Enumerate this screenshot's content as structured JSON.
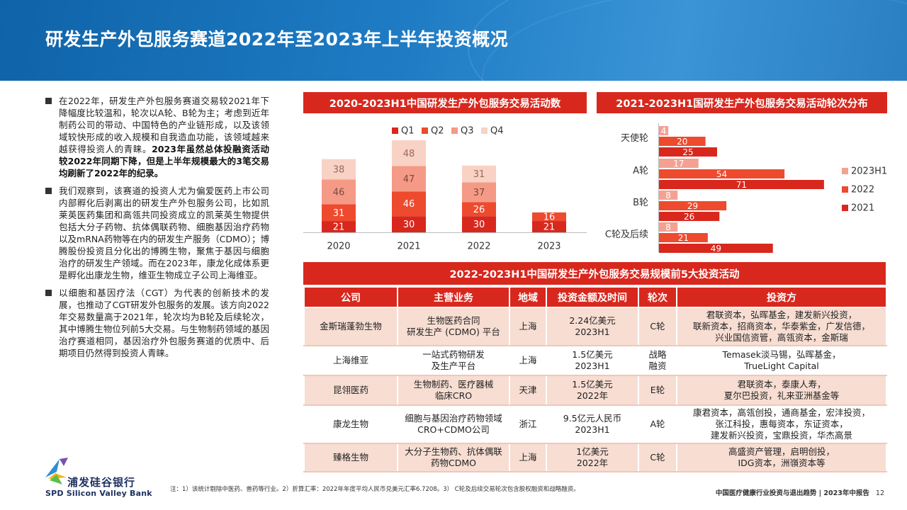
{
  "title": "研发生产外包服务赛道2022年至2023年上半年投资概况",
  "paragraphs": [
    {
      "normal": "在2022年，研发生产外包服务赛道交易较2021年下降幅度比较温和，轮次以A轮、B轮为主；考虑到近年制药公司的带动、中国特色的产业链形成，以及该领域较快形成的收入规模和自我造血功能，该领域越来越获得投资人的青睐。",
      "bold": "2023年虽然总体投融资活动较2022年同期下降，但是上半年规模最大的3笔交易均刷新了2022年的纪录。"
    },
    {
      "normal": "我们观察到，该赛道的投资人尤为偏爱医药上市公司内部孵化后剥离出的研发生产外包服务公司，比如凯莱英医药集团和高瓴共同投资成立的凯莱英生物提供包括大分子药物、抗体偶联药物、细胞基因治疗药物以及mRNA药物等在内的研发生产服务（CDMO）；博腾股份投资且分化出的博腾生物，聚焦于基因与细胞治疗的研发生产领域。而在2023年，康龙化成体系更是孵化出康龙生物，维亚生物成立子公司上海维亚。",
      "bold": ""
    },
    {
      "normal": "以细胞和基因疗法（CGT）为代表的创新技术的发展，也推动了CGT研发外包服务的发展。该方向2022年交易数量高于2021年，轮次均为B轮及后续轮次，其中博腾生物位列前5大交易。与生物制药领域的基因治疗赛道相同，基因治疗外包服务赛道的优质中、后期项目仍然得到投资人青睐。",
      "bold": ""
    }
  ],
  "chart1_title": "2020-2023H1中国研发生产外包服务交易活动数",
  "chart2_title": "2021-2023H1国研发生产外包服务交易活动轮次分布",
  "table_title": "2022-2023H1中国研发生产外包服务交易规模前5大投资活动",
  "colors": {
    "q1": "#d8281e",
    "q2": "#ee4a2e",
    "q3": "#f59a86",
    "q4": "#f8d2c4",
    "y2023h1": "#f4a193",
    "y2022": "#ee4a2e",
    "y2021": "#d8281e",
    "accent": "#d8281e"
  },
  "chart_data": [
    {
      "type": "bar",
      "stacked": true,
      "categories": [
        "2020",
        "2021",
        "2022",
        "2023"
      ],
      "series": [
        {
          "name": "Q1",
          "values": [
            21,
            30,
            30,
            21
          ],
          "color": "#d8281e"
        },
        {
          "name": "Q2",
          "values": [
            31,
            46,
            26,
            16
          ],
          "color": "#ee4a2e"
        },
        {
          "name": "Q3",
          "values": [
            46,
            47,
            37,
            null
          ],
          "color": "#f59a86"
        },
        {
          "name": "Q4",
          "values": [
            38,
            48,
            31,
            null
          ],
          "color": "#f8d2c4"
        }
      ],
      "legend_position": "top",
      "grid": false
    },
    {
      "type": "bar",
      "orientation": "horizontal",
      "categories": [
        "天使轮",
        "A轮",
        "B轮",
        "C轮及后续"
      ],
      "series": [
        {
          "name": "2023H1",
          "values": [
            4,
            17,
            8,
            8
          ],
          "color": "#f4a193"
        },
        {
          "name": "2022",
          "values": [
            20,
            54,
            29,
            21
          ],
          "color": "#ee4a2e"
        },
        {
          "name": "2021",
          "values": [
            25,
            71,
            26,
            49
          ],
          "color": "#d8281e"
        }
      ],
      "legend_position": "right",
      "grid": false
    }
  ],
  "table": {
    "headers": [
      "公司",
      "主营业务",
      "地域",
      "投资金额及时间",
      "轮次",
      "投资方"
    ],
    "rows": [
      {
        "company": "金斯瑞蓬勃生物",
        "business": [
          "生物医药合同",
          "研发生产 (CDMO) 平台"
        ],
        "region": "上海",
        "amount": [
          "2.24亿美元",
          "2023H1"
        ],
        "round": [
          "C轮"
        ],
        "investors": [
          "君联资本，弘晖基金，建发新兴投资，",
          "联新资本，招商资本，华泰紫金，广发信德，",
          "兴业国信资管，高瓴资本，金斯瑞"
        ]
      },
      {
        "company": "上海维亚",
        "business": [
          "一站式药物研发",
          "及生产平台"
        ],
        "region": "上海",
        "amount": [
          "1.5亿美元",
          "2023H1"
        ],
        "round": [
          "战略",
          "融资"
        ],
        "investors": [
          "Temasek淡马锡，弘晖基金，",
          "TrueLight Capital"
        ]
      },
      {
        "company": "昆翎医药",
        "business": [
          "生物制药、医疗器械",
          "临床CRO"
        ],
        "region": "天津",
        "amount": [
          "1.5亿美元",
          "2022年"
        ],
        "round": [
          "E轮"
        ],
        "investors": [
          "君联资本，泰康人寿，",
          "夏尔巴投资，礼来亚洲基金等"
        ]
      },
      {
        "company": "康龙生物",
        "business": [
          "细胞与基因治疗药物领域",
          "CRO+CDMO公司"
        ],
        "region": "浙江",
        "amount": [
          "9.5亿元人民币",
          "2023H1"
        ],
        "round": [
          "A轮"
        ],
        "investors": [
          "康君资本，高瓴创投，通商基金，宏沣投资，",
          "张江科投，惠每资本，东证资本，",
          "建发新兴投资，宝鼎投资，华杰高景"
        ]
      },
      {
        "company": "臻格生物",
        "business": [
          "大分子生物药、抗体偶联",
          "药物CDMO"
        ],
        "region": "上海",
        "amount": [
          "1亿美元",
          "2022年"
        ],
        "round": [
          "C轮"
        ],
        "investors": [
          "高盛资产管理，启明创投，",
          "IDG资本，洲嶺资本等"
        ]
      }
    ]
  },
  "logo": {
    "cn": "浦发硅谷银行",
    "en": "SPD Silicon Valley Bank"
  },
  "footnote": "注：1）该统计剔除中医药、兽药等行业。2）折算汇率：2022年年度平均人民币兑美元汇率6.7208。3） C轮及后续交易轮次包含股权融资和战略融资。",
  "footer": {
    "report": "中国医疗健康行业投资与退出趋势 | 2023年中报告",
    "page": "12"
  }
}
